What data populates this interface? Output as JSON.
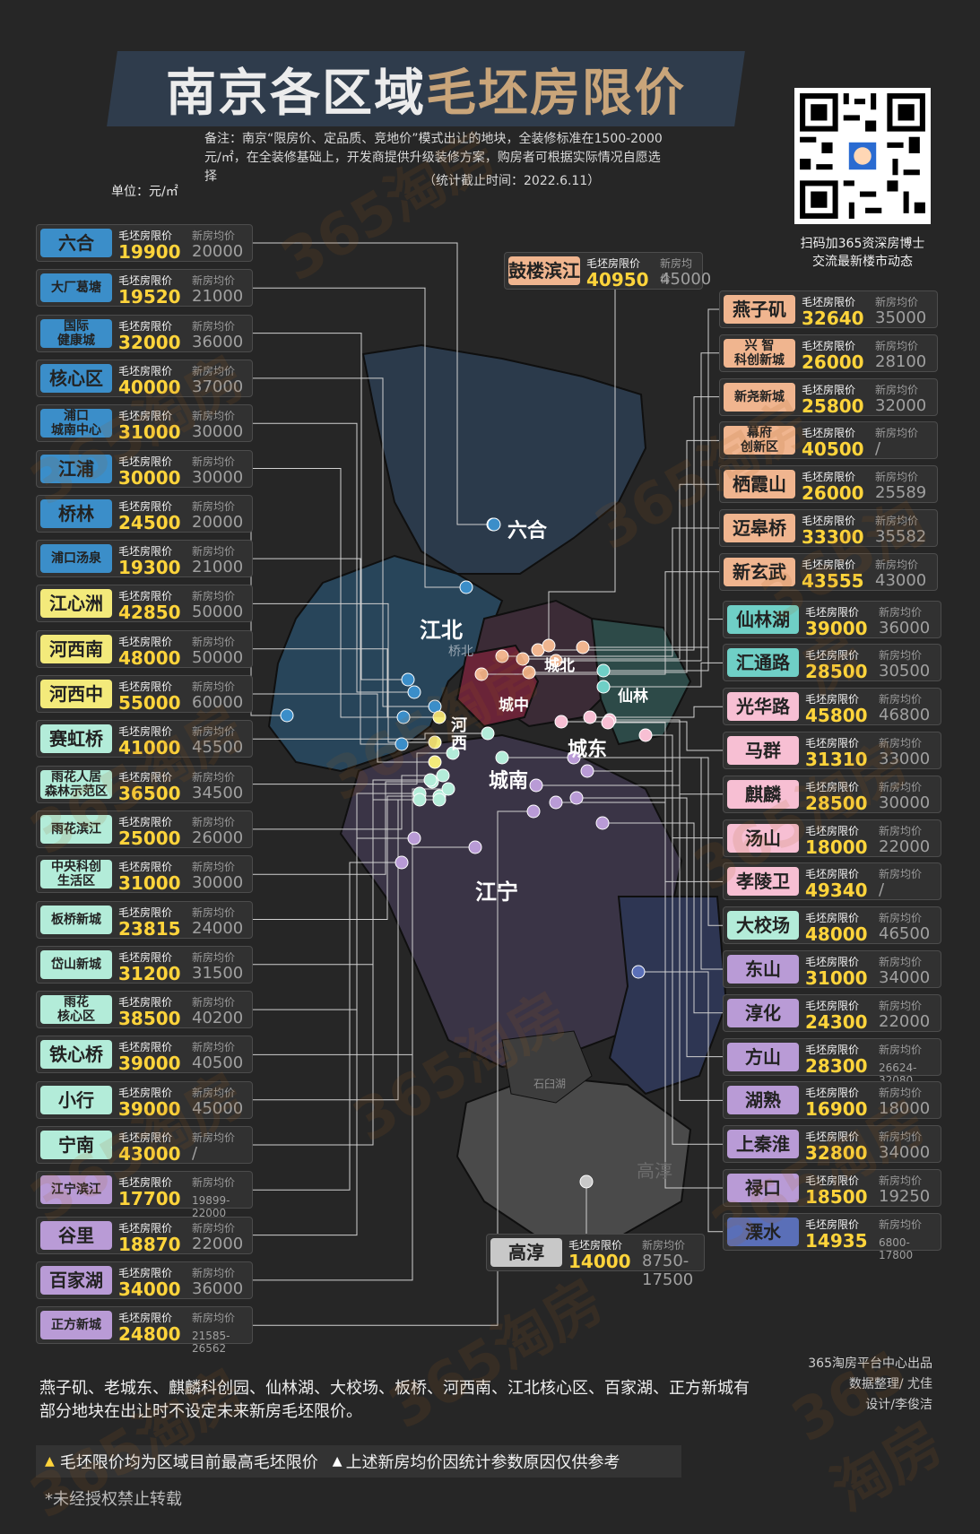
{
  "title": {
    "part1": "南京各区域",
    "part2": "毛坯房限价"
  },
  "note": "备注：南京“限房价、定品质、竞地价”模式出让的地块，全装修标准在1500-2000元/㎡，在全装修基础上，开发商提供升级装修方案，购房者可根据实际情况自愿选择",
  "stat_time": "（统计截止时间：2022.6.11）",
  "unit": "单位：元/㎡",
  "qr_caption": [
    "扫码加365资深房博士",
    "交流最新楼市动态"
  ],
  "card_labels": {
    "cap": "毛坯房限价",
    "avg": "新房均价"
  },
  "colors": {
    "blue": "#3b8ec9",
    "yellow": "#f3ea7b",
    "mint": "#b3ecd9",
    "orange": "#f0b58f",
    "teal": "#6fcfc6",
    "pink": "#f7bfd3",
    "purple": "#b99bd6",
    "gray": "#c8c8c8",
    "indigo": "#5a6fb8",
    "price": "#ffd43b",
    "title_gold": "#c9a57a"
  },
  "map_labels": [
    "六合",
    "江北",
    "桥北",
    "城北",
    "城中",
    "河西",
    "城东",
    "仙林",
    "城南",
    "江宁",
    "高淳",
    "石臼湖"
  ],
  "left_cards": [
    {
      "name": "六合",
      "cap": "19900",
      "avg": "20000",
      "color": "blue"
    },
    {
      "name": "大厂葛塘",
      "cap": "19520",
      "avg": "21000",
      "color": "blue",
      "small": true
    },
    {
      "name": "国际\n健康城",
      "cap": "32000",
      "avg": "36000",
      "color": "blue",
      "small": true
    },
    {
      "name": "核心区",
      "cap": "40000",
      "avg": "37000",
      "color": "blue"
    },
    {
      "name": "浦口\n城南中心",
      "cap": "31000",
      "avg": "30000",
      "color": "blue",
      "small": true
    },
    {
      "name": "江浦",
      "cap": "30000",
      "avg": "30000",
      "color": "blue"
    },
    {
      "name": "桥林",
      "cap": "24500",
      "avg": "20000",
      "color": "blue"
    },
    {
      "name": "浦口汤泉",
      "cap": "19300",
      "avg": "21000",
      "color": "blue",
      "small": true
    },
    {
      "name": "江心洲",
      "cap": "42850",
      "avg": "50000",
      "color": "yellow"
    },
    {
      "name": "河西南",
      "cap": "48000",
      "avg": "50000",
      "color": "yellow"
    },
    {
      "name": "河西中",
      "cap": "55000",
      "avg": "60000",
      "color": "yellow"
    },
    {
      "name": "赛虹桥",
      "cap": "41000",
      "avg": "45500",
      "color": "mint"
    },
    {
      "name": "雨花人居\n森林示范区",
      "cap": "36500",
      "avg": "34500",
      "color": "mint",
      "small": true
    },
    {
      "name": "雨花滨江",
      "cap": "25000",
      "avg": "26000",
      "color": "mint",
      "small": true
    },
    {
      "name": "中央科创\n生活区",
      "cap": "31000",
      "avg": "30000",
      "color": "mint",
      "small": true
    },
    {
      "name": "板桥新城",
      "cap": "23815",
      "avg": "24000",
      "color": "mint",
      "small": true
    },
    {
      "name": "岱山新城",
      "cap": "31200",
      "avg": "31500",
      "color": "mint",
      "small": true
    },
    {
      "name": "雨花\n核心区",
      "cap": "38500",
      "avg": "40200",
      "color": "mint",
      "small": true
    },
    {
      "name": "铁心桥",
      "cap": "39000",
      "avg": "40500",
      "color": "mint"
    },
    {
      "name": "小行",
      "cap": "39000",
      "avg": "45000",
      "color": "mint"
    },
    {
      "name": "宁南",
      "cap": "43000",
      "avg": "/",
      "color": "mint"
    },
    {
      "name": "江宁滨江",
      "cap": "17700",
      "avg": "19899-22000",
      "color": "purple",
      "small": true,
      "avgSmall": true
    },
    {
      "name": "谷里",
      "cap": "18870",
      "avg": "22000",
      "color": "purple"
    },
    {
      "name": "百家湖",
      "cap": "34000",
      "avg": "36000",
      "color": "purple"
    },
    {
      "name": "正方新城",
      "cap": "24800",
      "avg": "21585-26562",
      "color": "purple",
      "small": true,
      "avgSmall": true
    }
  ],
  "right_cards": [
    {
      "name": "燕子矶",
      "cap": "32640",
      "avg": "35000",
      "color": "orange"
    },
    {
      "name": "兴  智\n科创新城",
      "cap": "26000",
      "avg": "28100",
      "color": "orange",
      "small": true
    },
    {
      "name": "新尧新城",
      "cap": "25800",
      "avg": "32000",
      "color": "orange",
      "small": true
    },
    {
      "name": "幕府\n创新区",
      "cap": "40500",
      "avg": "/",
      "color": "orange",
      "small": true
    },
    {
      "name": "栖霞山",
      "cap": "26000",
      "avg": "25589",
      "color": "orange"
    },
    {
      "name": "迈皋桥",
      "cap": "33300",
      "avg": "35582",
      "color": "orange"
    },
    {
      "name": "新玄武",
      "cap": "43555",
      "avg": "43000",
      "color": "orange"
    },
    {
      "name": "仙林湖",
      "cap": "39000",
      "avg": "36000",
      "color": "teal"
    },
    {
      "name": "汇通路",
      "cap": "28500",
      "avg": "30500",
      "color": "teal"
    },
    {
      "name": "光华路",
      "cap": "45800",
      "avg": "46800",
      "color": "pink"
    },
    {
      "name": "马群",
      "cap": "31310",
      "avg": "33000",
      "color": "pink"
    },
    {
      "name": "麒麟",
      "cap": "28500",
      "avg": "30000",
      "color": "pink"
    },
    {
      "name": "汤山",
      "cap": "18000",
      "avg": "22000",
      "color": "pink"
    },
    {
      "name": "孝陵卫",
      "cap": "49340",
      "avg": "/",
      "color": "pink"
    },
    {
      "name": "大校场",
      "cap": "48000",
      "avg": "46500",
      "color": "mint"
    },
    {
      "name": "东山",
      "cap": "31000",
      "avg": "34000",
      "color": "purple"
    },
    {
      "name": "淳化",
      "cap": "24300",
      "avg": "22000",
      "color": "purple"
    },
    {
      "name": "方山",
      "cap": "28300",
      "avg": "26624-32080",
      "color": "purple",
      "avgSmall": true
    },
    {
      "name": "湖熟",
      "cap": "16900",
      "avg": "18000",
      "color": "purple"
    },
    {
      "name": "上秦淮",
      "cap": "32800",
      "avg": "34000",
      "color": "purple"
    },
    {
      "name": "禄口",
      "cap": "18500",
      "avg": "19250",
      "color": "purple"
    },
    {
      "name": "溧水",
      "cap": "14935",
      "avg": "6800-17800",
      "color": "indigo",
      "avgSmall": true
    }
  ],
  "top_card": {
    "name": "鼓楼滨江",
    "cap": "40950",
    "avg": "45000",
    "color": "orange"
  },
  "gaochun_card": {
    "name": "高淳",
    "cap": "14000",
    "avg": "8750-17500",
    "color": "gray"
  },
  "footnote": "燕子矶、老城东、麒麟科创园、仙林湖、大校场、板桥、河西南、江北核心区、百家湖、正方新城有部分地块在出让时不设定未来新房毛坯限价。",
  "credits": [
    "365淘房平台中心出品",
    "数据整理/ 尤佳",
    "设计/李俊洁"
  ],
  "bar": {
    "text1": "毛坯限价均为区域目前最高毛坯限价",
    "text2": "上述新房均价因统计参数原因仅供参考"
  },
  "copyright": "*未经授权禁止转载",
  "watermark": "365淘房"
}
